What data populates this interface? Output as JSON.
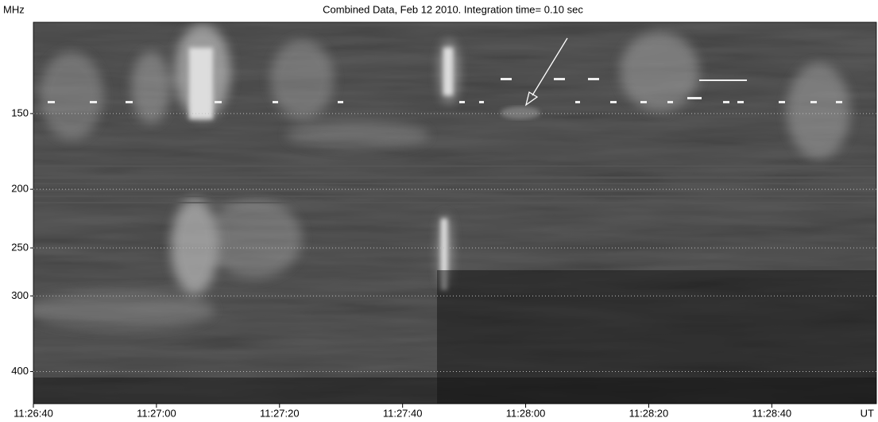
{
  "chart_data": {
    "type": "spectrogram",
    "title": "Combined Data, Feb 12 2010. Integration time= 0.10 sec",
    "ylabel": "MHz",
    "xlabel": "UT",
    "ylim": [
      106,
      452
    ],
    "yticks": [
      150,
      200,
      250,
      300,
      400
    ],
    "log_y": true,
    "y_inverted": true,
    "xlim": [
      41200,
      41337
    ],
    "xticks": [
      {
        "value": 41200,
        "label": "11:26:40"
      },
      {
        "value": 41220,
        "label": "11:27:00"
      },
      {
        "value": 41240,
        "label": "11:27:20"
      },
      {
        "value": 41260,
        "label": "11:27:40"
      },
      {
        "value": 41280,
        "label": "11:28:00"
      },
      {
        "value": 41300,
        "label": "11:28:20"
      },
      {
        "value": 41320,
        "label": "11:28:40"
      }
    ],
    "grid": true
  }
}
